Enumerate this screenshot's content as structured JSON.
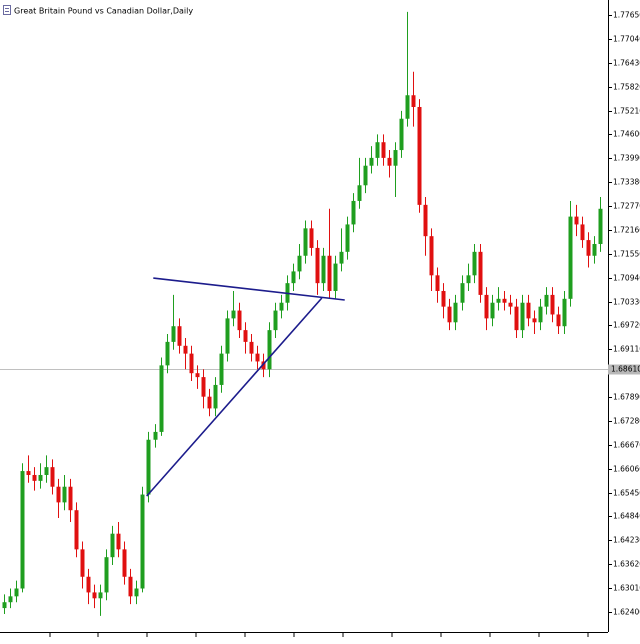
{
  "chart_data": {
    "type": "candlestick",
    "title": "Great Britain Pound vs Canadian Dollar,Daily",
    "colors": {
      "up": "#1f9e1f",
      "down": "#e01010",
      "trendline": "#1c1c8c",
      "bid_line": "#c0c0c0"
    },
    "ylim": [
      1.61889,
      1.78033
    ],
    "yticks": [
      {
        "value": 1.7765,
        "label": "1.77650"
      },
      {
        "value": 1.7704,
        "label": "1.77040"
      },
      {
        "value": 1.7643,
        "label": "1.76430"
      },
      {
        "value": 1.7582,
        "label": "1.75820"
      },
      {
        "value": 1.7521,
        "label": "1.75210"
      },
      {
        "value": 1.746,
        "label": "1.74600"
      },
      {
        "value": 1.7399,
        "label": "1.73990"
      },
      {
        "value": 1.7338,
        "label": "1.73380"
      },
      {
        "value": 1.7277,
        "label": "1.72770"
      },
      {
        "value": 1.7216,
        "label": "1.72160"
      },
      {
        "value": 1.7155,
        "label": "1.71550"
      },
      {
        "value": 1.7094,
        "label": "1.70940"
      },
      {
        "value": 1.7033,
        "label": "1.70330"
      },
      {
        "value": 1.6972,
        "label": "1.69720"
      },
      {
        "value": 1.6911,
        "label": "1.69110"
      },
      {
        "value": 1.6789,
        "label": "1.67890"
      },
      {
        "value": 1.6728,
        "label": "1.67280"
      },
      {
        "value": 1.6667,
        "label": "1.66670"
      },
      {
        "value": 1.6606,
        "label": "1.66060"
      },
      {
        "value": 1.6545,
        "label": "1.65450"
      },
      {
        "value": 1.6484,
        "label": "1.64840"
      },
      {
        "value": 1.6423,
        "label": "1.64230"
      },
      {
        "value": 1.6362,
        "label": "1.63620"
      },
      {
        "value": 1.6301,
        "label": "1.63010"
      },
      {
        "value": 1.624,
        "label": "1.62400"
      }
    ],
    "bid": {
      "value": 1.6861,
      "label": "1.68610"
    },
    "open": [
      1.625,
      1.6265,
      1.628,
      1.63,
      1.66,
      1.659,
      1.6575,
      1.659,
      1.661,
      1.656,
      1.652,
      1.656,
      1.65,
      1.64,
      1.633,
      1.629,
      1.6275,
      1.629,
      1.638,
      1.644,
      1.64,
      1.633,
      1.628,
      1.63,
      1.654,
      1.668,
      1.67,
      1.687,
      1.693,
      1.697,
      1.692,
      1.69,
      1.685,
      1.684,
      1.679,
      1.676,
      1.682,
      1.69,
      1.699,
      1.701,
      1.696,
      1.693,
      1.69,
      1.688,
      1.686,
      1.696,
      1.701,
      1.703,
      1.708,
      1.711,
      1.715,
      1.722,
      1.717,
      1.708,
      1.715,
      1.706,
      1.713,
      1.716,
      1.723,
      1.729,
      1.733,
      1.738,
      1.74,
      1.744,
      1.74,
      1.738,
      1.742,
      1.75,
      1.756,
      1.753,
      1.728,
      1.72,
      1.71,
      1.706,
      1.702,
      1.698,
      1.703,
      1.708,
      1.71,
      1.716,
      1.705,
      1.699,
      1.703,
      1.704,
      1.703,
      1.702,
      1.696,
      1.703,
      1.699,
      1.698,
      1.702,
      1.705,
      1.7,
      1.697,
      1.704,
      1.725,
      1.723,
      1.719,
      1.715,
      1.718
    ],
    "high": [
      1.6285,
      1.63,
      1.632,
      1.662,
      1.664,
      1.661,
      1.662,
      1.664,
      1.663,
      1.658,
      1.659,
      1.658,
      1.652,
      1.642,
      1.635,
      1.631,
      1.631,
      1.64,
      1.646,
      1.647,
      1.642,
      1.635,
      1.632,
      1.656,
      1.67,
      1.672,
      1.689,
      1.695,
      1.705,
      1.699,
      1.694,
      1.692,
      1.687,
      1.686,
      1.681,
      1.684,
      1.692,
      1.701,
      1.706,
      1.703,
      1.698,
      1.695,
      1.692,
      1.69,
      1.698,
      1.703,
      1.705,
      1.71,
      1.713,
      1.718,
      1.724,
      1.724,
      1.719,
      1.717,
      1.727,
      1.715,
      1.722,
      1.725,
      1.731,
      1.74,
      1.74,
      1.743,
      1.746,
      1.746,
      1.742,
      1.744,
      1.752,
      1.7773,
      1.762,
      1.755,
      1.73,
      1.722,
      1.712,
      1.708,
      1.704,
      1.705,
      1.71,
      1.713,
      1.718,
      1.718,
      1.707,
      1.705,
      1.707,
      1.706,
      1.705,
      1.704,
      1.705,
      1.705,
      1.701,
      1.704,
      1.707,
      1.707,
      1.702,
      1.706,
      1.729,
      1.728,
      1.725,
      1.721,
      1.72,
      1.73
    ],
    "low": [
      1.6235,
      1.625,
      1.6265,
      1.629,
      1.657,
      1.655,
      1.6555,
      1.657,
      1.654,
      1.648,
      1.65,
      1.647,
      1.638,
      1.63,
      1.626,
      1.625,
      1.623,
      1.627,
      1.636,
      1.638,
      1.631,
      1.626,
      1.626,
      1.629,
      1.652,
      1.666,
      1.669,
      1.685,
      1.691,
      1.69,
      1.686,
      1.683,
      1.681,
      1.676,
      1.674,
      1.674,
      1.68,
      1.688,
      1.697,
      1.694,
      1.69,
      1.688,
      1.686,
      1.684,
      1.684,
      1.694,
      1.699,
      1.701,
      1.706,
      1.709,
      1.713,
      1.715,
      1.705,
      1.706,
      1.704,
      1.704,
      1.711,
      1.714,
      1.721,
      1.727,
      1.731,
      1.736,
      1.738,
      1.738,
      1.735,
      1.73,
      1.74,
      1.748,
      1.748,
      1.726,
      1.715,
      1.706,
      1.703,
      1.699,
      1.696,
      1.696,
      1.701,
      1.706,
      1.708,
      1.703,
      1.696,
      1.697,
      1.701,
      1.701,
      1.7,
      1.694,
      1.694,
      1.697,
      1.695,
      1.696,
      1.7,
      1.698,
      1.695,
      1.695,
      1.702,
      1.72,
      1.717,
      1.712,
      1.713,
      1.716
    ],
    "close": [
      1.6265,
      1.628,
      1.63,
      1.66,
      1.659,
      1.6575,
      1.659,
      1.661,
      1.656,
      1.652,
      1.656,
      1.65,
      1.64,
      1.633,
      1.629,
      1.6275,
      1.629,
      1.638,
      1.644,
      1.64,
      1.633,
      1.628,
      1.63,
      1.654,
      1.668,
      1.67,
      1.687,
      1.693,
      1.697,
      1.692,
      1.69,
      1.685,
      1.684,
      1.679,
      1.676,
      1.682,
      1.69,
      1.699,
      1.701,
      1.696,
      1.693,
      1.69,
      1.688,
      1.686,
      1.696,
      1.701,
      1.703,
      1.708,
      1.711,
      1.715,
      1.722,
      1.717,
      1.708,
      1.715,
      1.706,
      1.713,
      1.716,
      1.723,
      1.729,
      1.733,
      1.738,
      1.74,
      1.744,
      1.74,
      1.738,
      1.742,
      1.75,
      1.756,
      1.753,
      1.728,
      1.72,
      1.71,
      1.706,
      1.702,
      1.698,
      1.703,
      1.708,
      1.71,
      1.716,
      1.705,
      1.699,
      1.703,
      1.704,
      1.703,
      1.702,
      1.696,
      1.703,
      1.699,
      1.698,
      1.702,
      1.705,
      1.7,
      1.697,
      1.704,
      1.725,
      1.723,
      1.719,
      1.715,
      1.718,
      1.727
    ],
    "trendlines": [
      {
        "x": [
          24.8,
          56.6
        ],
        "y": [
          1.7093,
          1.7037
        ]
      },
      {
        "x": [
          23.7,
          52.8
        ],
        "y": [
          1.6536,
          1.7042
        ]
      }
    ]
  }
}
